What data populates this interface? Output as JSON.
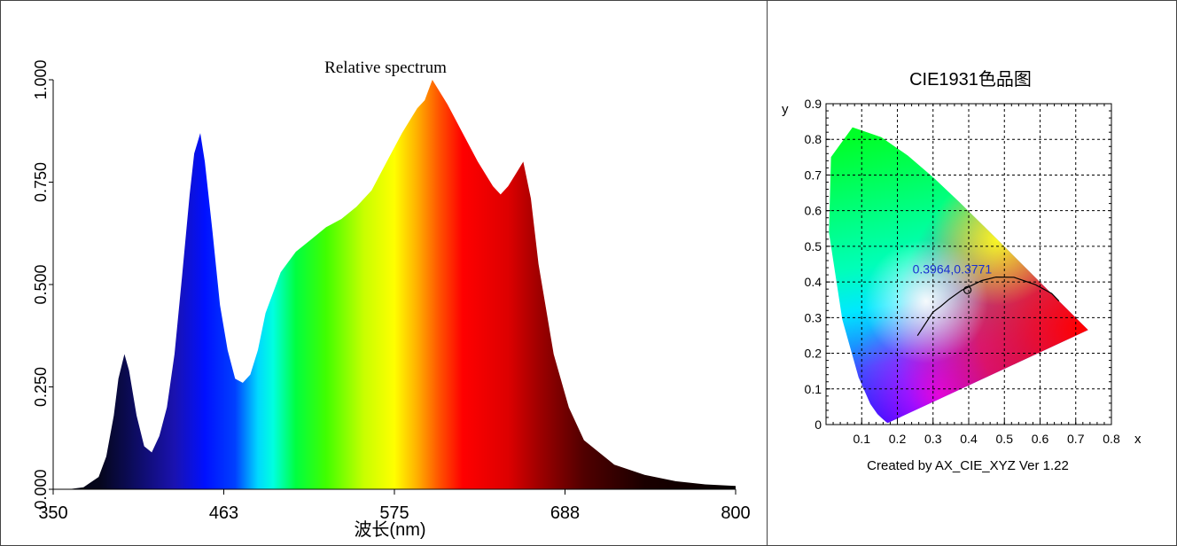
{
  "chart_data": [
    {
      "type": "area",
      "title": "Relative spectrum",
      "xlabel": "波长(nm)",
      "ylabel": "",
      "xlim": [
        350,
        800
      ],
      "ylim": [
        0,
        1
      ],
      "x_ticks": [
        "350",
        "463",
        "575",
        "688",
        "800"
      ],
      "y_ticks": [
        "0.000",
        "0.250",
        "0.500",
        "0.750",
        "1.000"
      ],
      "fill": "spectral-wavelength-colors",
      "x": [
        350,
        360,
        370,
        380,
        385,
        390,
        393,
        397,
        400,
        405,
        410,
        415,
        420,
        425,
        430,
        435,
        440,
        443,
        447,
        450,
        455,
        460,
        465,
        470,
        475,
        480,
        485,
        490,
        500,
        510,
        520,
        530,
        540,
        550,
        560,
        570,
        580,
        585,
        590,
        595,
        600,
        610,
        620,
        630,
        640,
        645,
        650,
        655,
        660,
        665,
        670,
        680,
        690,
        700,
        720,
        740,
        760,
        780,
        800
      ],
      "values": [
        0.0,
        0.0,
        0.005,
        0.03,
        0.08,
        0.18,
        0.27,
        0.33,
        0.29,
        0.18,
        0.105,
        0.09,
        0.13,
        0.2,
        0.33,
        0.52,
        0.72,
        0.82,
        0.87,
        0.8,
        0.63,
        0.45,
        0.34,
        0.27,
        0.26,
        0.28,
        0.34,
        0.43,
        0.53,
        0.58,
        0.61,
        0.64,
        0.66,
        0.69,
        0.73,
        0.8,
        0.87,
        0.9,
        0.93,
        0.95,
        1.0,
        0.94,
        0.87,
        0.8,
        0.74,
        0.72,
        0.74,
        0.77,
        0.8,
        0.71,
        0.55,
        0.33,
        0.2,
        0.12,
        0.06,
        0.035,
        0.02,
        0.012,
        0.008
      ]
    },
    {
      "type": "scatter",
      "title": "CIE1931色品图",
      "xlabel": "x",
      "ylabel": "y",
      "xlim": [
        0,
        0.8
      ],
      "ylim": [
        0,
        0.9
      ],
      "x_ticks": [
        "0",
        "0.1",
        "0.2",
        "0.3",
        "0.4",
        "0.5",
        "0.6",
        "0.7",
        "0.8"
      ],
      "y_ticks": [
        "0",
        "0.1",
        "0.2",
        "0.3",
        "0.4",
        "0.5",
        "0.6",
        "0.7",
        "0.8",
        "0.9"
      ],
      "grid": true,
      "point": {
        "x": 0.3964,
        "y": 0.3771,
        "label": "0.3964,0.3771",
        "label_color": "#1a2fd0"
      },
      "spectral_locus": {
        "x": [
          0.1741,
          0.1738,
          0.1728,
          0.1714,
          0.1689,
          0.1644,
          0.1566,
          0.144,
          0.1241,
          0.0913,
          0.0454,
          0.0082,
          0.0139,
          0.0743,
          0.1547,
          0.2296,
          0.3016,
          0.3731,
          0.4441,
          0.5125,
          0.5752,
          0.627,
          0.6658,
          0.6915,
          0.7079,
          0.7347
        ],
        "y": [
          0.005,
          0.0049,
          0.0048,
          0.0051,
          0.0069,
          0.0109,
          0.0177,
          0.0297,
          0.0578,
          0.1327,
          0.295,
          0.5384,
          0.7502,
          0.8338,
          0.8059,
          0.7543,
          0.6923,
          0.6245,
          0.5547,
          0.4866,
          0.4242,
          0.3725,
          0.334,
          0.3083,
          0.292,
          0.2653
        ]
      },
      "planckian_locus": {
        "x": [
          0.2565,
          0.2998,
          0.3221,
          0.3451,
          0.3805,
          0.4369,
          0.4764,
          0.5267,
          0.5857,
          0.6325,
          0.6529
        ],
        "y": [
          0.2493,
          0.3155,
          0.3318,
          0.3516,
          0.3768,
          0.4041,
          0.4137,
          0.4133,
          0.3931,
          0.3676,
          0.3463
        ]
      },
      "footer": "Created by AX_CIE_XYZ Ver 1.22"
    }
  ]
}
